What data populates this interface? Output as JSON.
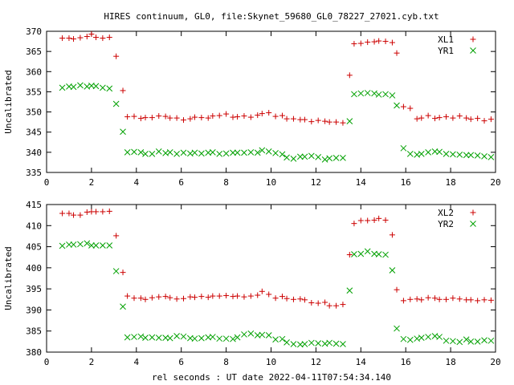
{
  "title": "HIRES continuum, GL0, file:Skynet_59680_GL0_78227_27021.cyb.txt",
  "xlabel": "rel seconds : UT date 2022-04-11T07:54:34.140",
  "colors": {
    "red": "#cc0000",
    "green": "#00a000"
  },
  "chart_data": [
    {
      "type": "scatter",
      "ylabel": "Uncalibrated",
      "xlim": [
        0,
        20
      ],
      "ylim": [
        335,
        370
      ],
      "xticks": [
        0,
        2,
        4,
        6,
        8,
        10,
        12,
        14,
        16,
        18,
        20
      ],
      "yticks": [
        335,
        340,
        345,
        350,
        355,
        360,
        365,
        370
      ],
      "legend": "top-right",
      "x": [
        0.7,
        1.0,
        1.2,
        1.5,
        1.8,
        2.0,
        2.2,
        2.5,
        2.8,
        3.1,
        3.4,
        3.6,
        3.9,
        4.2,
        4.4,
        4.7,
        5.0,
        5.3,
        5.5,
        5.8,
        6.1,
        6.4,
        6.6,
        6.9,
        7.2,
        7.4,
        7.7,
        8.0,
        8.3,
        8.5,
        8.8,
        9.1,
        9.4,
        9.6,
        9.9,
        10.2,
        10.5,
        10.7,
        11.0,
        11.3,
        11.5,
        11.8,
        12.1,
        12.4,
        12.6,
        12.9,
        13.2,
        13.5,
        13.7,
        14.0,
        14.3,
        14.6,
        14.8,
        15.1,
        15.4,
        15.6,
        15.9,
        16.2,
        16.5,
        16.7,
        17.0,
        17.3,
        17.5,
        17.8,
        18.1,
        18.4,
        18.7,
        18.9,
        19.2,
        19.5,
        19.8
      ],
      "series": [
        {
          "name": "XL1",
          "marker": "plus",
          "color": "#cc0000",
          "values": [
            368.3,
            368.3,
            368.1,
            368.4,
            368.7,
            369.3,
            368.5,
            368.3,
            368.5,
            363.8,
            355.3,
            348.8,
            348.9,
            348.4,
            348.6,
            348.6,
            349.0,
            348.9,
            348.5,
            348.5,
            348.0,
            348.3,
            348.7,
            348.6,
            348.5,
            349.0,
            349.1,
            349.5,
            348.7,
            348.8,
            349.0,
            348.7,
            349.2,
            349.6,
            349.8,
            348.9,
            349.1,
            348.3,
            348.3,
            348.1,
            348.1,
            347.6,
            347.9,
            347.7,
            347.5,
            347.5,
            347.3,
            359.1,
            366.9,
            367.0,
            367.3,
            367.4,
            367.6,
            367.5,
            367.2,
            364.6,
            351.3,
            350.9,
            348.3,
            348.5,
            349.1,
            348.4,
            348.6,
            348.8,
            348.5,
            349.0,
            348.5,
            348.2,
            348.4,
            347.8,
            348.2
          ]
        },
        {
          "name": "YR1",
          "marker": "cross",
          "color": "#00a000",
          "values": [
            356.0,
            356.3,
            356.2,
            356.6,
            356.3,
            356.5,
            356.4,
            356.0,
            355.8,
            352.0,
            345.1,
            340.0,
            340.1,
            340.0,
            339.6,
            339.6,
            340.2,
            339.8,
            340.0,
            339.6,
            339.9,
            339.7,
            339.9,
            339.7,
            339.9,
            340.0,
            339.6,
            339.7,
            339.9,
            339.9,
            339.9,
            340.0,
            339.9,
            340.5,
            340.2,
            339.8,
            339.5,
            338.7,
            338.4,
            338.9,
            338.9,
            339.1,
            338.8,
            338.2,
            338.5,
            338.6,
            338.6,
            347.7,
            354.4,
            354.6,
            354.7,
            354.6,
            354.3,
            354.4,
            354.1,
            351.6,
            341.0,
            339.6,
            339.4,
            339.6,
            340.0,
            340.2,
            340.1,
            339.6,
            339.5,
            339.4,
            339.3,
            339.3,
            339.2,
            339.0,
            338.8
          ]
        }
      ]
    },
    {
      "type": "scatter",
      "ylabel": "Uncalibrated",
      "xlim": [
        0,
        20
      ],
      "ylim": [
        380,
        415
      ],
      "xticks": [
        0,
        2,
        4,
        6,
        8,
        10,
        12,
        14,
        16,
        18,
        20
      ],
      "yticks": [
        380,
        385,
        390,
        395,
        400,
        405,
        410,
        415
      ],
      "legend": "top-right",
      "x": [
        0.7,
        1.0,
        1.2,
        1.5,
        1.8,
        2.0,
        2.2,
        2.5,
        2.8,
        3.1,
        3.4,
        3.6,
        3.9,
        4.2,
        4.4,
        4.7,
        5.0,
        5.3,
        5.5,
        5.8,
        6.1,
        6.4,
        6.6,
        6.9,
        7.2,
        7.4,
        7.7,
        8.0,
        8.3,
        8.5,
        8.8,
        9.1,
        9.4,
        9.6,
        9.9,
        10.2,
        10.5,
        10.7,
        11.0,
        11.3,
        11.5,
        11.8,
        12.1,
        12.4,
        12.6,
        12.9,
        13.2,
        13.5,
        13.7,
        14.0,
        14.3,
        14.6,
        14.8,
        15.1,
        15.4,
        15.6,
        15.9,
        16.2,
        16.5,
        16.7,
        17.0,
        17.3,
        17.5,
        17.8,
        18.1,
        18.4,
        18.7,
        18.9,
        19.2,
        19.5,
        19.8
      ],
      "series": [
        {
          "name": "XL2",
          "marker": "plus",
          "color": "#cc0000",
          "values": [
            412.9,
            412.9,
            412.5,
            412.5,
            413.2,
            413.3,
            413.3,
            413.3,
            413.4,
            407.6,
            398.9,
            393.3,
            392.8,
            392.8,
            392.5,
            392.9,
            393.1,
            393.2,
            392.9,
            392.6,
            392.7,
            393.1,
            393.0,
            393.2,
            393.0,
            393.3,
            393.3,
            393.4,
            393.2,
            393.3,
            393.1,
            393.3,
            393.5,
            394.4,
            393.7,
            392.8,
            393.2,
            392.7,
            392.5,
            392.6,
            392.4,
            391.7,
            391.6,
            391.8,
            391.0,
            391.0,
            391.3,
            403.1,
            410.5,
            411.2,
            411.2,
            411.3,
            411.7,
            411.3,
            407.8,
            394.8,
            392.2,
            392.5,
            392.6,
            392.4,
            392.9,
            392.8,
            392.5,
            392.5,
            392.8,
            392.6,
            392.4,
            392.4,
            392.2,
            392.4,
            392.3
          ]
        },
        {
          "name": "YR2",
          "marker": "cross",
          "color": "#00a000",
          "values": [
            405.2,
            405.5,
            405.5,
            405.6,
            405.8,
            405.3,
            405.3,
            405.3,
            405.3,
            399.2,
            390.8,
            383.5,
            383.6,
            383.7,
            383.4,
            383.5,
            383.4,
            383.4,
            383.3,
            383.8,
            383.7,
            383.3,
            383.2,
            383.3,
            383.5,
            383.6,
            383.2,
            383.2,
            383.1,
            383.5,
            384.2,
            384.4,
            384.0,
            384.1,
            384.0,
            383.0,
            383.1,
            382.3,
            381.9,
            381.8,
            381.9,
            382.2,
            382.1,
            382.0,
            382.2,
            382.0,
            381.9,
            394.6,
            403.2,
            403.3,
            403.9,
            403.3,
            403.2,
            403.1,
            399.4,
            385.6,
            383.1,
            382.9,
            383.2,
            383.4,
            383.6,
            383.8,
            383.6,
            382.7,
            382.6,
            382.4,
            383.0,
            382.5,
            382.5,
            382.8,
            382.7
          ]
        }
      ]
    }
  ]
}
